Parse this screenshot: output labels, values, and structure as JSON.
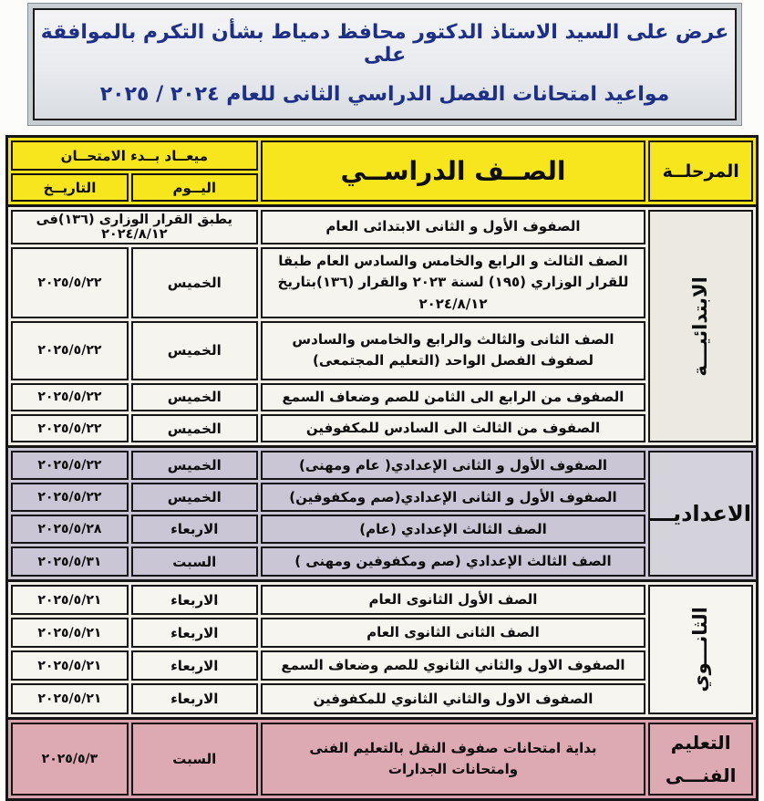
{
  "banner": {
    "line1": "عرض على السيد الاستاذ الدكتور محافظ دمياط بشأن التكرم بالموافقة على",
    "line2": "مواعيد امتحانات الفصل الدراسي الثانى للعام ٢٠٢٤ / ٢٠٢٥"
  },
  "table": {
    "header": {
      "exam_start": "ميعــاد بــدء الامتحــان",
      "day": "اليــوم",
      "date": "التاريــخ",
      "grade": "الصــف الدراســي",
      "stage": "المرحلــة"
    },
    "sections": [
      {
        "stage_label": "الابتدائيـــة",
        "colors": {
          "frame": "#efede6",
          "cell": "#f6f4ef",
          "stage_bg": "#ebe9e2"
        },
        "rows": [
          {
            "grade": "الصفوف الأول و الثانى الابتدائى العام",
            "note": "يطبق القرار الوزارى (١٣٦)فى ٢٠٢٤/٨/١٢"
          },
          {
            "grade": "الصف الثالث و الرابع والخامس والسادس العام طبقا للقرار الوزاري (١٩٥) لسنة ٢٠٢٣ والقرار (١٣٦)بتاريخ ٢٠٢٤/٨/١٢",
            "day": "الخميس",
            "date": "٢٠٢٥/٥/٢٢"
          },
          {
            "grade": "الصف الثانى والثالث والرابع والخامس والسادس لصفوف الفصل الواحد (التعليم المجتمعى)",
            "day": "الخميس",
            "date": "٢٠٢٥/٥/٢٢"
          },
          {
            "grade": "الصفوف من الرابع الى الثامن  للصم وضعاف السمع",
            "day": "الخميس",
            "date": "٢٠٢٥/٥/٢٢"
          },
          {
            "grade": "الصفوف من الثالث الى السادس للمكفوفين",
            "day": "الخميس",
            "date": "٢٠٢٥/٥/٢٢"
          }
        ]
      },
      {
        "stage_label": "الاعداديـــة",
        "colors": {
          "frame": "#c9c5d4",
          "cell": "#cac6d5",
          "stage_bg": "#d4d2db"
        },
        "rows": [
          {
            "grade": "الصفوف الأول و الثانى الإعدادي( عام ومهنى)",
            "day": "الخميس",
            "date": "٢٠٢٥/٥/٢٢"
          },
          {
            "grade": "الصفوف الأول و الثانى الإعدادي(صم ومكفوفين)",
            "day": "الخميس",
            "date": "٢٠٢٥/٥/٢٢"
          },
          {
            "grade": "الصف الثالث الإعدادي  (عام)",
            "day": "الاربعاء",
            "date": "٢٠٢٥/٥/٢٨"
          },
          {
            "grade": "الصف الثالث الإعدادي  (صم ومكفوفين ومهنى )",
            "day": "السبت",
            "date": "٢٠٢٥/٥/٣١"
          }
        ]
      },
      {
        "stage_label": "الثانـــوي",
        "colors": {
          "frame": "#efede6",
          "cell": "#f7f5f0",
          "stage_bg": "#f7f5f0"
        },
        "rows": [
          {
            "grade": "الصف الأول الثانوى العام",
            "day": "الاربعاء",
            "date": "٢٠٢٥/٥/٢١"
          },
          {
            "grade": "الصف الثانى الثانوى العام",
            "day": "الاربعاء",
            "date": "٢٠٢٥/٥/٢١"
          },
          {
            "grade": "الصفوف الاول والثاني الثانوي للصم وضعاف السمع",
            "day": "الاربعاء",
            "date": "٢٠٢٥/٥/٢١"
          },
          {
            "grade": "الصفوف الاول والثاني الثانوي للمكفوفين",
            "day": "الاربعاء",
            "date": "٢٠٢٥/٥/٢١"
          }
        ]
      },
      {
        "stage_label": "التعليم\nالفنـــى",
        "colors": {
          "frame": "#d8a2ad",
          "cell": "#dda9b3",
          "stage_bg": "#dda9b3"
        },
        "rows": [
          {
            "grade": "بداية امتحانات صفوف النقل بالتعليم الفنى\nوامتحانات الجدارات",
            "day": "السبت",
            "date": "٢٠٢٥/٥/٣"
          }
        ]
      }
    ]
  }
}
